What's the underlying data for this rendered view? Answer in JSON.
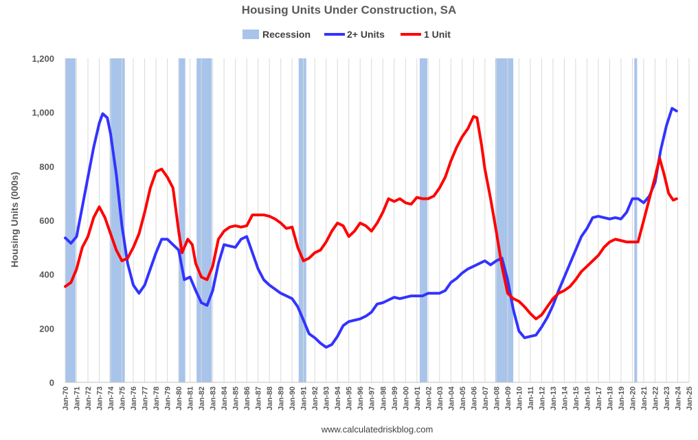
{
  "chart_data": {
    "type": "line",
    "title": "Housing Units Under Construction, SA",
    "ylabel": "Housing Units (000s)",
    "xlabel": "",
    "ylim": [
      0,
      1200
    ],
    "yticks": [
      0,
      200,
      400,
      600,
      800,
      1000,
      1200
    ],
    "ytick_labels": [
      "0",
      "200",
      "400",
      "600",
      "800",
      "1,000",
      "1,200"
    ],
    "xlim": [
      1970,
      2025
    ],
    "xtick_labels": [
      "Jan-70",
      "Jan-71",
      "Jan-72",
      "Jan-73",
      "Jan-74",
      "Jan-75",
      "Jan-76",
      "Jan-77",
      "Jan-78",
      "Jan-79",
      "Jan-80",
      "Jan-81",
      "Jan-82",
      "Jan-83",
      "Jan-84",
      "Jan-85",
      "Jan-86",
      "Jan-87",
      "Jan-88",
      "Jan-89",
      "Jan-90",
      "Jan-91",
      "Jan-92",
      "Jan-93",
      "Jan-94",
      "Jan-95",
      "Jan-96",
      "Jan-97",
      "Jan-98",
      "Jan-99",
      "Jan-00",
      "Jan-01",
      "Jan-02",
      "Jan-03",
      "Jan-04",
      "Jan-05",
      "Jan-06",
      "Jan-07",
      "Jan-08",
      "Jan-09",
      "Jan-10",
      "Jan-11",
      "Jan-12",
      "Jan-13",
      "Jan-14",
      "Jan-15",
      "Jan-16",
      "Jan-17",
      "Jan-18",
      "Jan-19",
      "Jan-20",
      "Jan-21",
      "Jan-22",
      "Jan-23",
      "Jan-24",
      "Jan-25"
    ],
    "grid": "vertical",
    "legend_position": "top",
    "source": "www.calculatedriskblog.com",
    "recessions": {
      "name": "Recession",
      "color": "#a9c4eb",
      "periods": [
        [
          1970.0,
          1970.92
        ],
        [
          1973.92,
          1975.25
        ],
        [
          1980.0,
          1980.58
        ],
        [
          1981.58,
          1982.92
        ],
        [
          1990.58,
          1991.25
        ],
        [
          2001.25,
          2001.92
        ],
        [
          2007.92,
          2009.5
        ],
        [
          2020.17,
          2020.42
        ]
      ]
    },
    "series": [
      {
        "name": "2+ Units",
        "color": "#3333ff",
        "points": [
          [
            1970.0,
            535
          ],
          [
            1970.5,
            515
          ],
          [
            1971.0,
            540
          ],
          [
            1971.5,
            650
          ],
          [
            1972.0,
            760
          ],
          [
            1972.5,
            870
          ],
          [
            1973.0,
            960
          ],
          [
            1973.3,
            995
          ],
          [
            1973.7,
            980
          ],
          [
            1974.0,
            920
          ],
          [
            1974.5,
            770
          ],
          [
            1975.0,
            580
          ],
          [
            1975.5,
            440
          ],
          [
            1976.0,
            360
          ],
          [
            1976.5,
            330
          ],
          [
            1977.0,
            360
          ],
          [
            1977.5,
            420
          ],
          [
            1978.0,
            480
          ],
          [
            1978.5,
            530
          ],
          [
            1979.0,
            530
          ],
          [
            1979.5,
            510
          ],
          [
            1980.0,
            490
          ],
          [
            1980.5,
            380
          ],
          [
            1981.0,
            390
          ],
          [
            1981.5,
            340
          ],
          [
            1982.0,
            295
          ],
          [
            1982.5,
            285
          ],
          [
            1983.0,
            340
          ],
          [
            1983.5,
            440
          ],
          [
            1984.0,
            510
          ],
          [
            1984.5,
            505
          ],
          [
            1985.0,
            500
          ],
          [
            1985.5,
            530
          ],
          [
            1986.0,
            540
          ],
          [
            1986.5,
            480
          ],
          [
            1987.0,
            420
          ],
          [
            1987.5,
            380
          ],
          [
            1988.0,
            360
          ],
          [
            1988.5,
            345
          ],
          [
            1989.0,
            330
          ],
          [
            1989.5,
            320
          ],
          [
            1990.0,
            310
          ],
          [
            1990.5,
            280
          ],
          [
            1991.0,
            230
          ],
          [
            1991.5,
            180
          ],
          [
            1992.0,
            165
          ],
          [
            1992.5,
            145
          ],
          [
            1993.0,
            130
          ],
          [
            1993.5,
            140
          ],
          [
            1994.0,
            170
          ],
          [
            1994.5,
            210
          ],
          [
            1995.0,
            225
          ],
          [
            1995.5,
            230
          ],
          [
            1996.0,
            235
          ],
          [
            1996.5,
            245
          ],
          [
            1997.0,
            260
          ],
          [
            1997.5,
            290
          ],
          [
            1998.0,
            295
          ],
          [
            1998.5,
            305
          ],
          [
            1999.0,
            315
          ],
          [
            1999.5,
            310
          ],
          [
            2000.0,
            315
          ],
          [
            2000.5,
            320
          ],
          [
            2001.0,
            320
          ],
          [
            2001.5,
            320
          ],
          [
            2002.0,
            330
          ],
          [
            2002.5,
            330
          ],
          [
            2003.0,
            330
          ],
          [
            2003.5,
            340
          ],
          [
            2004.0,
            370
          ],
          [
            2004.5,
            385
          ],
          [
            2005.0,
            405
          ],
          [
            2005.5,
            420
          ],
          [
            2006.0,
            430
          ],
          [
            2006.5,
            440
          ],
          [
            2007.0,
            450
          ],
          [
            2007.5,
            435
          ],
          [
            2008.0,
            450
          ],
          [
            2008.5,
            460
          ],
          [
            2009.0,
            380
          ],
          [
            2009.5,
            270
          ],
          [
            2010.0,
            190
          ],
          [
            2010.5,
            165
          ],
          [
            2011.0,
            170
          ],
          [
            2011.5,
            175
          ],
          [
            2012.0,
            205
          ],
          [
            2012.5,
            240
          ],
          [
            2013.0,
            285
          ],
          [
            2013.5,
            340
          ],
          [
            2014.0,
            390
          ],
          [
            2014.5,
            440
          ],
          [
            2015.0,
            490
          ],
          [
            2015.5,
            540
          ],
          [
            2016.0,
            570
          ],
          [
            2016.5,
            610
          ],
          [
            2017.0,
            615
          ],
          [
            2017.5,
            610
          ],
          [
            2018.0,
            605
          ],
          [
            2018.5,
            610
          ],
          [
            2019.0,
            605
          ],
          [
            2019.5,
            630
          ],
          [
            2020.0,
            680
          ],
          [
            2020.5,
            680
          ],
          [
            2021.0,
            665
          ],
          [
            2021.5,
            690
          ],
          [
            2022.0,
            740
          ],
          [
            2022.5,
            860
          ],
          [
            2023.0,
            950
          ],
          [
            2023.5,
            1015
          ],
          [
            2023.9,
            1005
          ]
        ]
      },
      {
        "name": "1 Unit",
        "color": "#ff0000",
        "points": [
          [
            1970.0,
            355
          ],
          [
            1970.5,
            370
          ],
          [
            1971.0,
            420
          ],
          [
            1971.5,
            500
          ],
          [
            1972.0,
            540
          ],
          [
            1972.5,
            610
          ],
          [
            1973.0,
            650
          ],
          [
            1973.5,
            610
          ],
          [
            1974.0,
            550
          ],
          [
            1974.5,
            490
          ],
          [
            1975.0,
            450
          ],
          [
            1975.5,
            460
          ],
          [
            1976.0,
            500
          ],
          [
            1976.5,
            550
          ],
          [
            1977.0,
            630
          ],
          [
            1977.5,
            720
          ],
          [
            1978.0,
            780
          ],
          [
            1978.5,
            790
          ],
          [
            1979.0,
            760
          ],
          [
            1979.5,
            720
          ],
          [
            1980.0,
            560
          ],
          [
            1980.3,
            480
          ],
          [
            1980.8,
            530
          ],
          [
            1981.2,
            510
          ],
          [
            1981.5,
            440
          ],
          [
            1982.0,
            390
          ],
          [
            1982.5,
            380
          ],
          [
            1983.0,
            430
          ],
          [
            1983.5,
            530
          ],
          [
            1984.0,
            560
          ],
          [
            1984.5,
            575
          ],
          [
            1985.0,
            580
          ],
          [
            1985.5,
            575
          ],
          [
            1986.0,
            580
          ],
          [
            1986.5,
            620
          ],
          [
            1987.0,
            620
          ],
          [
            1987.5,
            620
          ],
          [
            1988.0,
            615
          ],
          [
            1988.5,
            605
          ],
          [
            1989.0,
            590
          ],
          [
            1989.5,
            570
          ],
          [
            1990.0,
            575
          ],
          [
            1990.5,
            500
          ],
          [
            1991.0,
            450
          ],
          [
            1991.5,
            460
          ],
          [
            1992.0,
            480
          ],
          [
            1992.5,
            490
          ],
          [
            1993.0,
            520
          ],
          [
            1993.5,
            560
          ],
          [
            1994.0,
            590
          ],
          [
            1994.5,
            580
          ],
          [
            1995.0,
            540
          ],
          [
            1995.5,
            560
          ],
          [
            1996.0,
            590
          ],
          [
            1996.5,
            580
          ],
          [
            1997.0,
            560
          ],
          [
            1997.5,
            590
          ],
          [
            1998.0,
            630
          ],
          [
            1998.5,
            680
          ],
          [
            1999.0,
            670
          ],
          [
            1999.5,
            680
          ],
          [
            2000.0,
            665
          ],
          [
            2000.5,
            660
          ],
          [
            2001.0,
            685
          ],
          [
            2001.5,
            680
          ],
          [
            2002.0,
            680
          ],
          [
            2002.5,
            690
          ],
          [
            2003.0,
            720
          ],
          [
            2003.5,
            760
          ],
          [
            2004.0,
            820
          ],
          [
            2004.5,
            870
          ],
          [
            2005.0,
            910
          ],
          [
            2005.5,
            940
          ],
          [
            2006.0,
            985
          ],
          [
            2006.3,
            980
          ],
          [
            2006.7,
            880
          ],
          [
            2007.0,
            790
          ],
          [
            2007.5,
            680
          ],
          [
            2008.0,
            560
          ],
          [
            2008.5,
            430
          ],
          [
            2009.0,
            330
          ],
          [
            2009.5,
            310
          ],
          [
            2010.0,
            300
          ],
          [
            2010.5,
            280
          ],
          [
            2011.0,
            255
          ],
          [
            2011.5,
            235
          ],
          [
            2012.0,
            250
          ],
          [
            2012.5,
            280
          ],
          [
            2013.0,
            310
          ],
          [
            2013.5,
            330
          ],
          [
            2014.0,
            340
          ],
          [
            2014.5,
            355
          ],
          [
            2015.0,
            380
          ],
          [
            2015.5,
            410
          ],
          [
            2016.0,
            430
          ],
          [
            2016.5,
            450
          ],
          [
            2017.0,
            470
          ],
          [
            2017.5,
            500
          ],
          [
            2018.0,
            520
          ],
          [
            2018.5,
            530
          ],
          [
            2019.0,
            525
          ],
          [
            2019.5,
            520
          ],
          [
            2020.0,
            520
          ],
          [
            2020.5,
            520
          ],
          [
            2021.0,
            600
          ],
          [
            2021.5,
            680
          ],
          [
            2022.0,
            760
          ],
          [
            2022.4,
            830
          ],
          [
            2022.8,
            770
          ],
          [
            2023.2,
            700
          ],
          [
            2023.6,
            675
          ],
          [
            2023.9,
            680
          ]
        ]
      }
    ]
  }
}
